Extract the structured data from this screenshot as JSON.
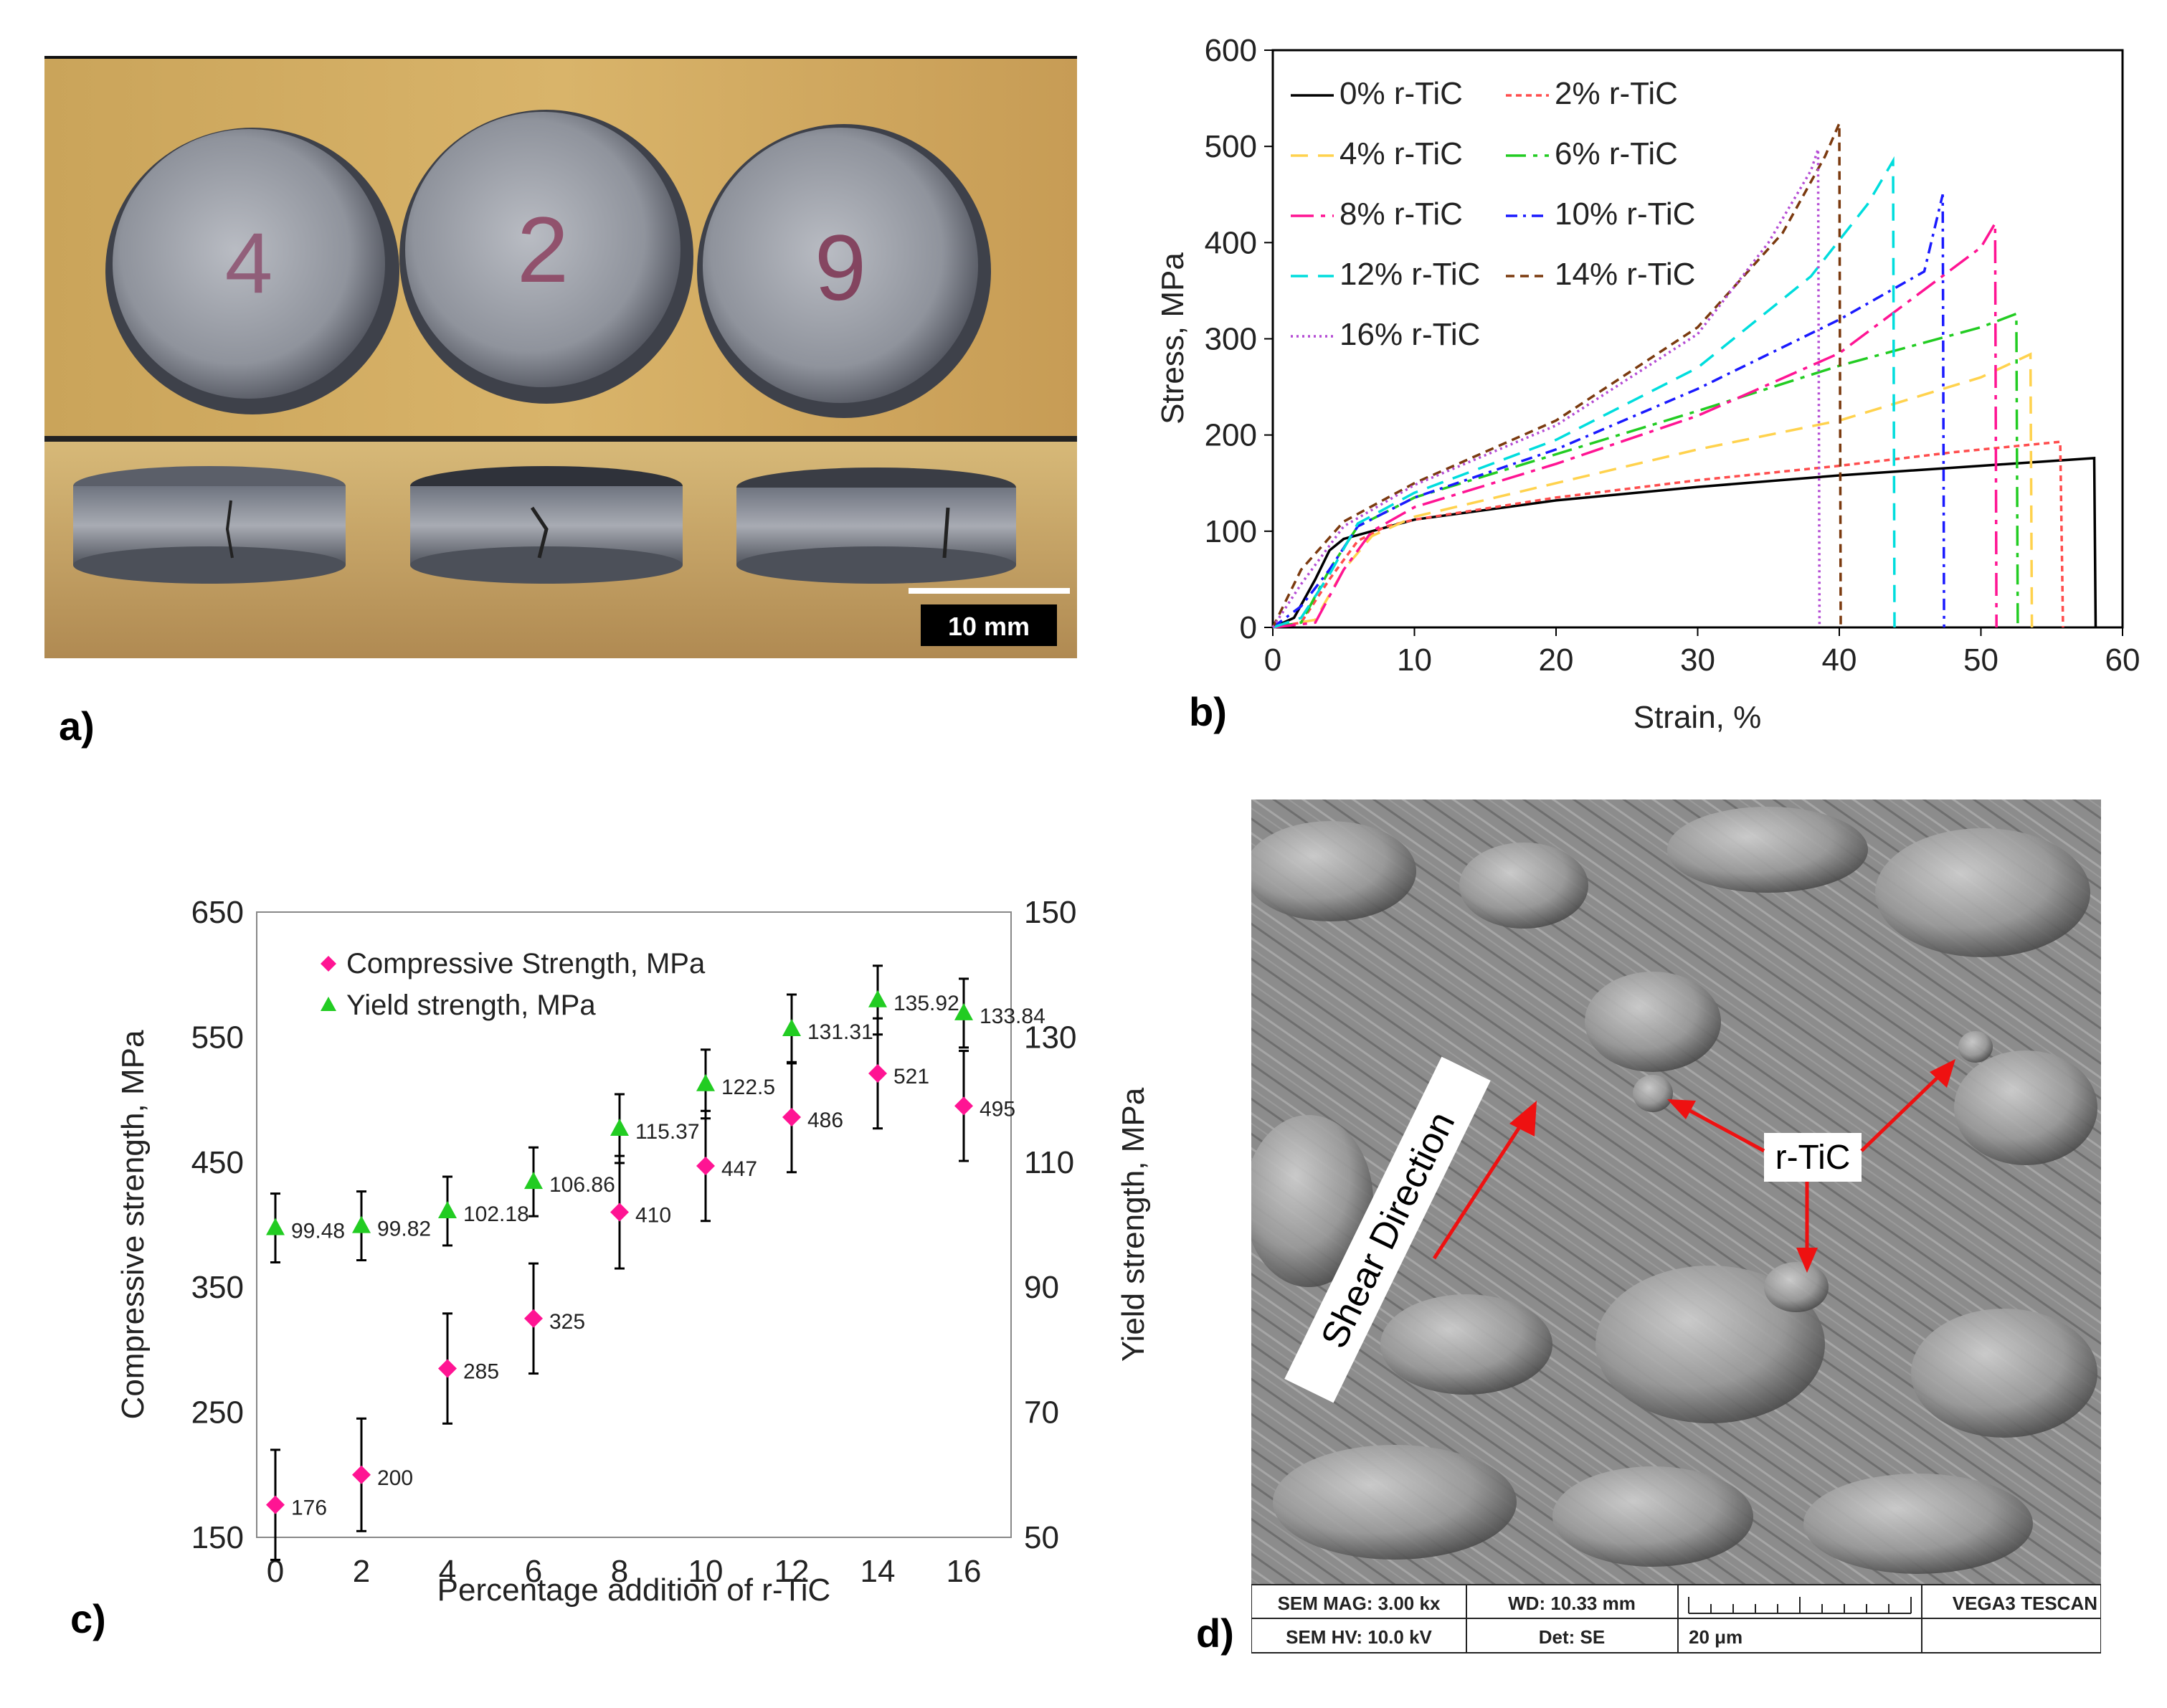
{
  "panel_labels": {
    "a": "a)",
    "b": "b)",
    "c": "c)",
    "d": "d)"
  },
  "photo": {
    "scale_bar": "10 mm",
    "sample_marks": [
      "4",
      "2",
      "9"
    ]
  },
  "sem": {
    "shear_label": "Shear Direction",
    "rtic_label": "r-TiC",
    "info": {
      "mag": "SEM MAG: 3.00 kx",
      "wd": "WD: 10.33 mm",
      "hv": "SEM HV: 10.0 kV",
      "det": "Det: SE",
      "scale": "20 μm",
      "brand": "VEGA3 TESCAN"
    }
  },
  "chart_data": [
    {
      "type": "line",
      "xlabel": "Strain, %",
      "ylabel": "Stress, MPa",
      "xlim": [
        0,
        60
      ],
      "ylim": [
        0,
        600
      ],
      "xticks": [
        0,
        10,
        20,
        30,
        40,
        50,
        60
      ],
      "yticks": [
        0,
        100,
        200,
        300,
        400,
        500,
        600
      ],
      "grid": false,
      "legend_position": "top-left",
      "series": [
        {
          "name": "0% r-TiC",
          "color": "#000000",
          "dash": "",
          "points": [
            [
              0,
              0
            ],
            [
              1.5,
              10
            ],
            [
              3,
              50
            ],
            [
              4,
              80
            ],
            [
              5,
              92
            ],
            [
              7,
              100
            ],
            [
              10,
              112
            ],
            [
              20,
              132
            ],
            [
              30,
              146
            ],
            [
              40,
              158
            ],
            [
              50,
              168
            ],
            [
              58,
              176
            ],
            [
              58.1,
              0
            ]
          ]
        },
        {
          "name": "2% r-TiC",
          "color": "#ff4d4d",
          "dash": "8 6",
          "points": [
            [
              0,
              0
            ],
            [
              2,
              5
            ],
            [
              4,
              50
            ],
            [
              6,
              90
            ],
            [
              8,
              105
            ],
            [
              10,
              112
            ],
            [
              20,
              135
            ],
            [
              30,
              153
            ],
            [
              40,
              168
            ],
            [
              48,
              182
            ],
            [
              55.6,
              193
            ],
            [
              55.8,
              0
            ]
          ]
        },
        {
          "name": "4% r-TiC",
          "color": "#ffd24d",
          "dash": "24 14",
          "points": [
            [
              0,
              0
            ],
            [
              3,
              8
            ],
            [
              5,
              60
            ],
            [
              7,
              95
            ],
            [
              10,
              115
            ],
            [
              20,
              150
            ],
            [
              30,
              185
            ],
            [
              40,
              215
            ],
            [
              50,
              260
            ],
            [
              53.5,
              284
            ],
            [
              53.6,
              0
            ]
          ]
        },
        {
          "name": "6% r-TiC",
          "color": "#22cc22",
          "dash": "28 10 6 10",
          "points": [
            [
              0,
              0
            ],
            [
              2,
              5
            ],
            [
              4,
              60
            ],
            [
              6,
              105
            ],
            [
              10,
              135
            ],
            [
              20,
              180
            ],
            [
              30,
              225
            ],
            [
              40,
              272
            ],
            [
              50,
              312
            ],
            [
              52.5,
              326
            ],
            [
              52.6,
              0
            ]
          ]
        },
        {
          "name": "8% r-TiC",
          "color": "#ff1493",
          "dash": "32 10 6 10",
          "points": [
            [
              0,
              0
            ],
            [
              3,
              5
            ],
            [
              5,
              60
            ],
            [
              7,
              100
            ],
            [
              10,
              125
            ],
            [
              20,
              170
            ],
            [
              30,
              220
            ],
            [
              40,
              285
            ],
            [
              50,
              395
            ],
            [
              51,
              420
            ],
            [
              51.1,
              0
            ]
          ]
        },
        {
          "name": "10% r-TiC",
          "color": "#1a1aff",
          "dash": "16 8 4 8",
          "points": [
            [
              0,
              0
            ],
            [
              2,
              22
            ],
            [
              4,
              60
            ],
            [
              6,
              105
            ],
            [
              10,
              135
            ],
            [
              20,
              185
            ],
            [
              30,
              248
            ],
            [
              40,
              320
            ],
            [
              46,
              370
            ],
            [
              47.3,
              450
            ],
            [
              47.4,
              0
            ]
          ]
        },
        {
          "name": "12% r-TiC",
          "color": "#00dddd",
          "dash": "24 14",
          "points": [
            [
              0,
              0
            ],
            [
              2,
              10
            ],
            [
              4,
              55
            ],
            [
              6,
              108
            ],
            [
              10,
              140
            ],
            [
              20,
              195
            ],
            [
              30,
              270
            ],
            [
              38,
              365
            ],
            [
              42,
              440
            ],
            [
              43.8,
              485
            ],
            [
              43.9,
              0
            ]
          ]
        },
        {
          "name": "14% r-TiC",
          "color": "#7b3a0f",
          "dash": "12 8",
          "points": [
            [
              0,
              0
            ],
            [
              2,
              60
            ],
            [
              5,
              110
            ],
            [
              10,
              150
            ],
            [
              20,
              215
            ],
            [
              30,
              312
            ],
            [
              36,
              410
            ],
            [
              39,
              490
            ],
            [
              40,
              524
            ],
            [
              40.1,
              0
            ]
          ]
        },
        {
          "name": "16% r-TiC",
          "color": "#b44bd4",
          "dash": "3 5",
          "points": [
            [
              0,
              0
            ],
            [
              2,
              45
            ],
            [
              5,
              105
            ],
            [
              10,
              148
            ],
            [
              20,
              210
            ],
            [
              30,
              305
            ],
            [
              35,
              400
            ],
            [
              38,
              475
            ],
            [
              38.5,
              497
            ],
            [
              38.6,
              0
            ]
          ]
        }
      ]
    },
    {
      "type": "scatter",
      "xlabel": "Percentage addition of r-TiC",
      "ylabel": "Compressive strength, MPa",
      "ylabel_right": "Yield strength, MPa",
      "xlim": [
        0,
        18
      ],
      "ylim": [
        150,
        650
      ],
      "ylim_right": [
        50,
        150
      ],
      "xticks": [
        0,
        2,
        4,
        6,
        8,
        10,
        12,
        14,
        16
      ],
      "yticks": [
        150,
        250,
        350,
        450,
        550,
        650
      ],
      "yticks_right": [
        50,
        70,
        90,
        110,
        130,
        150
      ],
      "legend_position": "top-left",
      "x": [
        0,
        2,
        4,
        6,
        8,
        10,
        12,
        14,
        16
      ],
      "series": [
        {
          "name": "Compressive Strength, MPa",
          "axis": "left",
          "color": "#ff1493",
          "marker": "diamond",
          "values": [
            176,
            200,
            285,
            325,
            410,
            447,
            486,
            521,
            495
          ],
          "labels": [
            "176",
            "200",
            "285",
            "325",
            "410",
            "447",
            "486",
            "521",
            "495"
          ],
          "errors": [
            44,
            45,
            44,
            44,
            45,
            44,
            44,
            44,
            44
          ]
        },
        {
          "name": "Yield strength, MPa",
          "axis": "right",
          "color": "#22cc22",
          "marker": "triangle",
          "values": [
            99.48,
            99.82,
            102.18,
            106.86,
            115.37,
            122.5,
            131.31,
            135.92,
            133.84
          ],
          "labels": [
            "99.48",
            "99.82",
            "102.18",
            "106.86",
            "115.37",
            "122.5",
            "131.31",
            "135.92",
            "133.84"
          ],
          "errors": [
            5.5,
            5.5,
            5.5,
            5.5,
            5.5,
            5.5,
            5.5,
            5.5,
            5.5
          ]
        }
      ]
    }
  ]
}
